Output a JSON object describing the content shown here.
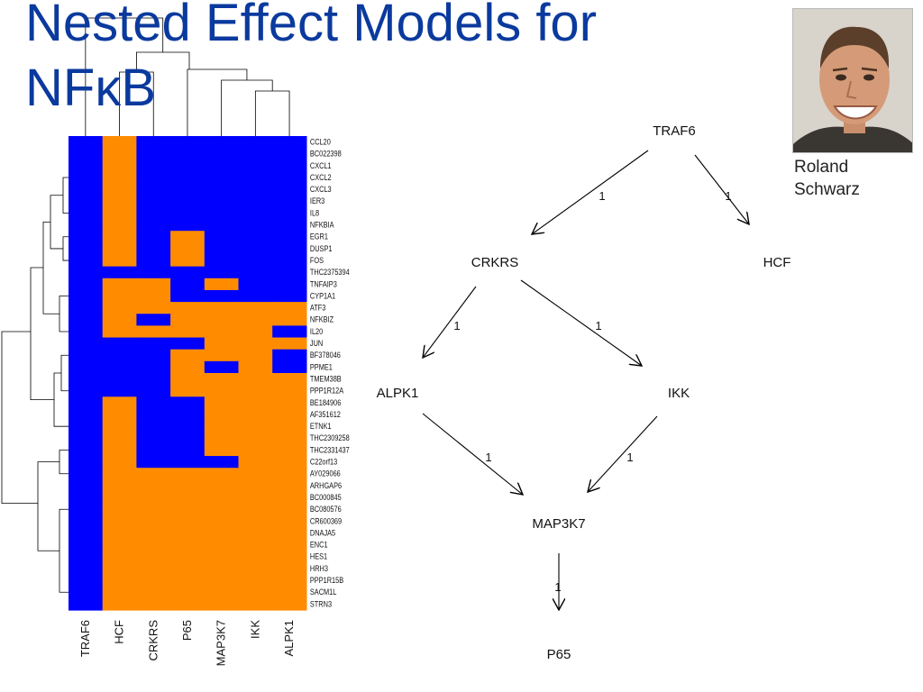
{
  "slide": {
    "title_line1": "Nested Effect Models for",
    "title_line2": "NFκB",
    "person_line1": "Roland",
    "person_line2": "Schwarz"
  },
  "colors": {
    "title": "#0b3a9e",
    "blue": "#0000ff",
    "orange": "#ff8c00"
  },
  "heatmap": {
    "columns": [
      "TRAF6",
      "HCF",
      "CRKRS",
      "P65",
      "MAP3K7",
      "IKK",
      "ALPK1"
    ],
    "rows": [
      "CCL20",
      "BC022398",
      "CXCL1",
      "CXCL2",
      "CXCL3",
      "IER3",
      "IL8",
      "NFKBIA",
      "EGR1",
      "DUSP1",
      "FOS",
      "THC2375394",
      "TNFAIP3",
      "CYP1A1",
      "ATF3",
      "NFKBIZ",
      "IL20",
      "JUN",
      "BF378046",
      "PPME1",
      "TMEM38B",
      "PPP1R12A",
      "BE184906",
      "AF351612",
      "ETNK1",
      "THC2309258",
      "THC2331437",
      "C22orf13",
      "AY029066",
      "ARHGAP6",
      "BC000845",
      "BC080576",
      "CR600369",
      "DNAJA5",
      "ENC1",
      "HES1",
      "HRH3",
      "PPP1R15B",
      "SACM1L",
      "STRN3"
    ],
    "matrix": [
      "0100000",
      "0100000",
      "0100000",
      "0100000",
      "0100000",
      "0100000",
      "0100000",
      "0100000",
      "0101000",
      "0101000",
      "0101000",
      "0000000",
      "0110100",
      "0110000",
      "0111111",
      "0101111",
      "0111110",
      "0000111",
      "0001110",
      "0001010",
      "0001111",
      "0001111",
      "0100111",
      "0100111",
      "0100111",
      "0100111",
      "0100111",
      "0100011",
      "0111111",
      "0111111",
      "0111111",
      "0111111",
      "0111111",
      "0111111",
      "0111111",
      "0111111",
      "0111111",
      "0111111",
      "0111111",
      "0111111"
    ]
  },
  "network": {
    "nodes": [
      "TRAF6",
      "HCF",
      "CRKRS",
      "ALPK1",
      "IKK",
      "MAP3K7",
      "P65"
    ],
    "edges": [
      {
        "from": "TRAF6",
        "to": "CRKRS",
        "label": "1"
      },
      {
        "from": "TRAF6",
        "to": "HCF",
        "label": "1"
      },
      {
        "from": "CRKRS",
        "to": "ALPK1",
        "label": "1"
      },
      {
        "from": "CRKRS",
        "to": "IKK",
        "label": "1"
      },
      {
        "from": "ALPK1",
        "to": "MAP3K7",
        "label": "1"
      },
      {
        "from": "IKK",
        "to": "MAP3K7",
        "label": "1"
      },
      {
        "from": "MAP3K7",
        "to": "P65",
        "label": "1"
      }
    ]
  }
}
